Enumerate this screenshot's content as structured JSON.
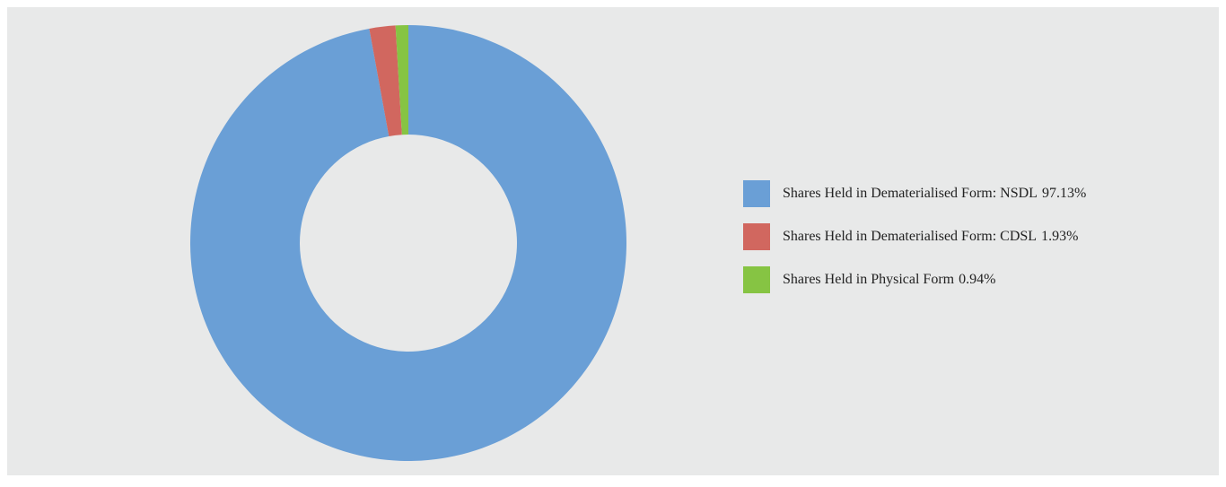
{
  "chart_data": {
    "type": "donut",
    "categories": [
      "Shares Held in Dematerialised Form: NSDL",
      "Shares Held in Dematerialised Form: CDSL",
      "Shares Held in Physical Form"
    ],
    "values": [
      97.13,
      1.93,
      0.94
    ],
    "value_labels": [
      "97.13%",
      "1.93%",
      "0.94%"
    ],
    "colors": [
      "#6a9fd6",
      "#d1675f",
      "#86c443"
    ],
    "legend": "right"
  }
}
